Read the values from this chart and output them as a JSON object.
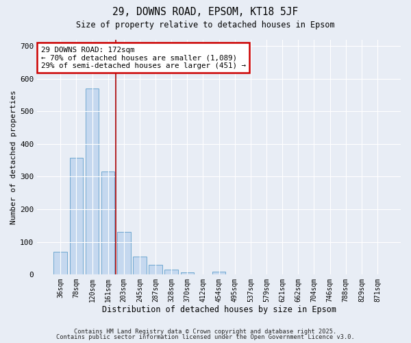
{
  "title1": "29, DOWNS ROAD, EPSOM, KT18 5JF",
  "title2": "Size of property relative to detached houses in Epsom",
  "xlabel": "Distribution of detached houses by size in Epsom",
  "ylabel": "Number of detached properties",
  "categories": [
    "36sqm",
    "78sqm",
    "120sqm",
    "161sqm",
    "203sqm",
    "245sqm",
    "287sqm",
    "328sqm",
    "370sqm",
    "412sqm",
    "454sqm",
    "495sqm",
    "537sqm",
    "579sqm",
    "621sqm",
    "662sqm",
    "704sqm",
    "746sqm",
    "788sqm",
    "829sqm",
    "871sqm"
  ],
  "values": [
    70,
    358,
    570,
    315,
    130,
    55,
    30,
    15,
    6,
    0,
    8,
    0,
    0,
    0,
    0,
    0,
    0,
    0,
    0,
    0,
    0
  ],
  "bar_color": "#c5d8ef",
  "bar_edge_color": "#6fa8d0",
  "background_color": "#e8edf5",
  "grid_color": "#ffffff",
  "red_line_x": 3.5,
  "annotation_text": "29 DOWNS ROAD: 172sqm\n← 70% of detached houses are smaller (1,089)\n29% of semi-detached houses are larger (451) →",
  "annotation_box_color": "#ffffff",
  "annotation_box_edge": "#cc0000",
  "footer1": "Contains HM Land Registry data © Crown copyright and database right 2025.",
  "footer2": "Contains public sector information licensed under the Open Government Licence v3.0.",
  "ylim": [
    0,
    720
  ],
  "yticks": [
    0,
    100,
    200,
    300,
    400,
    500,
    600,
    700
  ]
}
